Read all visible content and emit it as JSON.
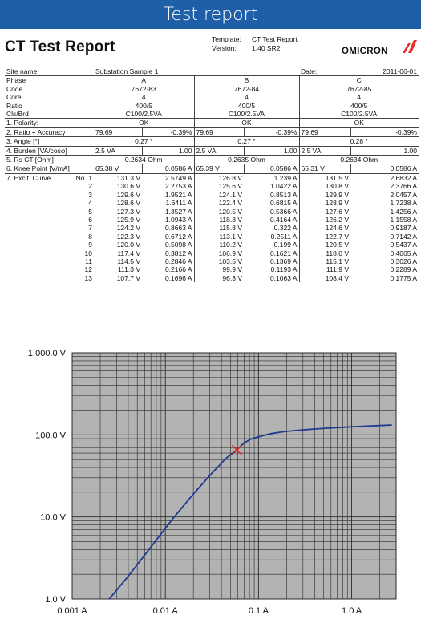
{
  "window": {
    "title": "Test report"
  },
  "header": {
    "title": "CT Test Report",
    "template_label": "Template:",
    "template_value": "CT Test Report",
    "version_label": "Version:",
    "version_value": "1.40 SR2",
    "logo_text": "OMICRON",
    "site_label": "Site name:",
    "site_value": "Substation Sample 1",
    "date_label": "Date:",
    "date_value": "2011-06-01"
  },
  "rows": {
    "phase": {
      "label": "Phase",
      "a": "A",
      "b": "B",
      "c": "C"
    },
    "code": {
      "label": "Code",
      "a": "7672-83",
      "b": "7672-84",
      "c": "7672-85"
    },
    "core": {
      "label": "Core",
      "a": "4",
      "b": "4",
      "c": "4"
    },
    "ratio": {
      "label": "Ratio",
      "a": "400/5",
      "b": "400/5",
      "c": "400/5"
    },
    "clsbrd": {
      "label": "Cls/Brd",
      "a": "C100/2.5VA",
      "b": "C100/2.5VA",
      "c": "C100/2.5VA"
    },
    "polarity": {
      "label": "1. Polarity:",
      "a": "OK",
      "b": "OK",
      "c": "OK"
    },
    "ratio_acc": {
      "label": "2. Ratio + Accuracy",
      "a1": "79.69",
      "a2": "-0.39%",
      "b1": "79.69",
      "b2": "-0.39%",
      "c1": "79.69",
      "c2": "-0.39%"
    },
    "angle": {
      "label": "3. Angle [°]",
      "a": "0.27 °",
      "b": "0.27 °",
      "c": "0.28 °"
    },
    "burden": {
      "label": "4. Burden [VA/cosφ]",
      "a1": "2.5 VA",
      "a2": "1.00",
      "b1": "2.5 VA",
      "b2": "1.00",
      "c1": "2.5 VA",
      "c2": "1.00"
    },
    "rsct": {
      "label": "5. Rs CT [Ohm]",
      "a": "0.2634 Ohm",
      "b": "0.2635 Ohm",
      "c": "0.2634 Ohm"
    },
    "knee": {
      "label": "6. Knee Point [V/mA]",
      "a1": "65.38 V",
      "a2": "0.0586 A",
      "b1": "65.39 V",
      "b2": "0.0586 A",
      "c1": "65.31 V",
      "c2": "0.0586 A"
    }
  },
  "excitation": {
    "label": "7. Excit. Curve",
    "no_label": "No. 1",
    "rows": [
      {
        "n": "",
        "av": "131.3 V",
        "ai": "2.5749 A",
        "bv": "126.8 V",
        "bi": "1.239 A",
        "cv": "131.5 V",
        "ci": "2.6832 A"
      },
      {
        "n": "2",
        "av": "130.6 V",
        "ai": "2.2753 A",
        "bv": "125.6 V",
        "bi": "1.0422 A",
        "cv": "130.8 V",
        "ci": "2.3766 A"
      },
      {
        "n": "3",
        "av": "129.6 V",
        "ai": "1.9521 A",
        "bv": "124.1 V",
        "bi": "0.8513 A",
        "cv": "129.9 V",
        "ci": "2.0457 A"
      },
      {
        "n": "4",
        "av": "128.6 V",
        "ai": "1.6411 A",
        "bv": "122.4 V",
        "bi": "0.6815 A",
        "cv": "128.9 V",
        "ci": "1.7238 A"
      },
      {
        "n": "5",
        "av": "127.3 V",
        "ai": "1.3527 A",
        "bv": "120.5 V",
        "bi": "0.5366 A",
        "cv": "127.6 V",
        "ci": "1.4256 A"
      },
      {
        "n": "6",
        "av": "125.9 V",
        "ai": "1.0943 A",
        "bv": "118.3 V",
        "bi": "0.4164 A",
        "cv": "126.2 V",
        "ci": "1.1558 A"
      },
      {
        "n": "7",
        "av": "124.2 V",
        "ai": "0.8663 A",
        "bv": "115.8 V",
        "bi": "0.322 A",
        "cv": "124.6 V",
        "ci": "0.9187 A"
      },
      {
        "n": "8",
        "av": "122.3 V",
        "ai": "0.6712 A",
        "bv": "113.1 V",
        "bi": "0.2511 A",
        "cv": "122.7 V",
        "ci": "0.7142 A"
      },
      {
        "n": "9",
        "av": "120.0 V",
        "ai": "0.5098 A",
        "bv": "110.2 V",
        "bi": "0.199 A",
        "cv": "120.5 V",
        "ci": "0.5437 A"
      },
      {
        "n": "10",
        "av": "117.4 V",
        "ai": "0.3812 A",
        "bv": "106.9 V",
        "bi": "0.1621 A",
        "cv": "118.0 V",
        "ci": "0.4065 A"
      },
      {
        "n": "11",
        "av": "114.5 V",
        "ai": "0.2846 A",
        "bv": "103.5 V",
        "bi": "0.1369 A",
        "cv": "115.1 V",
        "ci": "0.3026 A"
      },
      {
        "n": "12",
        "av": "111.3 V",
        "ai": "0.2166 A",
        "bv": "99.9 V",
        "bi": "0.1193 A",
        "cv": "111.9 V",
        "ci": "0.2289 A"
      },
      {
        "n": "13",
        "av": "107.7 V",
        "ai": "0.1696 A",
        "bv": "96.3 V",
        "bi": "0.1063 A",
        "cv": "108.4 V",
        "ci": "0.1775 A"
      }
    ]
  },
  "colors": {
    "titlebar": "#1f5fa8",
    "curve": "#1f3a8f",
    "knee_marker": "#e02020",
    "plot_bg": "#b3b3b3",
    "logo_red": "#e3322b"
  },
  "chart_data": {
    "type": "line",
    "title": "",
    "xlabel": "",
    "ylabel": "",
    "x_scale": "log",
    "y_scale": "log",
    "xlim": [
      0.001,
      3
    ],
    "ylim": [
      1,
      1000
    ],
    "x_ticks": [
      0.001,
      0.01,
      0.1,
      1.0
    ],
    "x_tick_labels": [
      "0.001 A",
      "0.01 A",
      "0.1 A",
      "1.0 A"
    ],
    "y_ticks": [
      1,
      10,
      100,
      1000
    ],
    "y_tick_labels": [
      "1.0 V",
      "10.0 V",
      "100.0 V",
      "1,000.0 V"
    ],
    "grid": true,
    "series": [
      {
        "x": [
          0.0025,
          0.004,
          0.007,
          0.012,
          0.02,
          0.03,
          0.045,
          0.0586,
          0.07,
          0.085,
          0.1063,
          0.1193,
          0.1369,
          0.1621,
          0.199,
          0.2511,
          0.322,
          0.4164,
          0.5366,
          0.6815,
          0.8513,
          1.0422,
          1.239,
          2.0,
          2.7
        ],
        "y": [
          1.0,
          1.9,
          4.3,
          9.5,
          19.0,
          32.0,
          52.0,
          65.38,
          80.0,
          90.0,
          96.3,
          99.9,
          103.5,
          106.9,
          110.2,
          113.1,
          115.8,
          118.3,
          120.5,
          122.4,
          124.1,
          125.6,
          126.8,
          130.0,
          132.0
        ]
      }
    ],
    "markers": [
      {
        "type": "knee-point",
        "x": 0.0586,
        "y": 65.38
      }
    ]
  }
}
